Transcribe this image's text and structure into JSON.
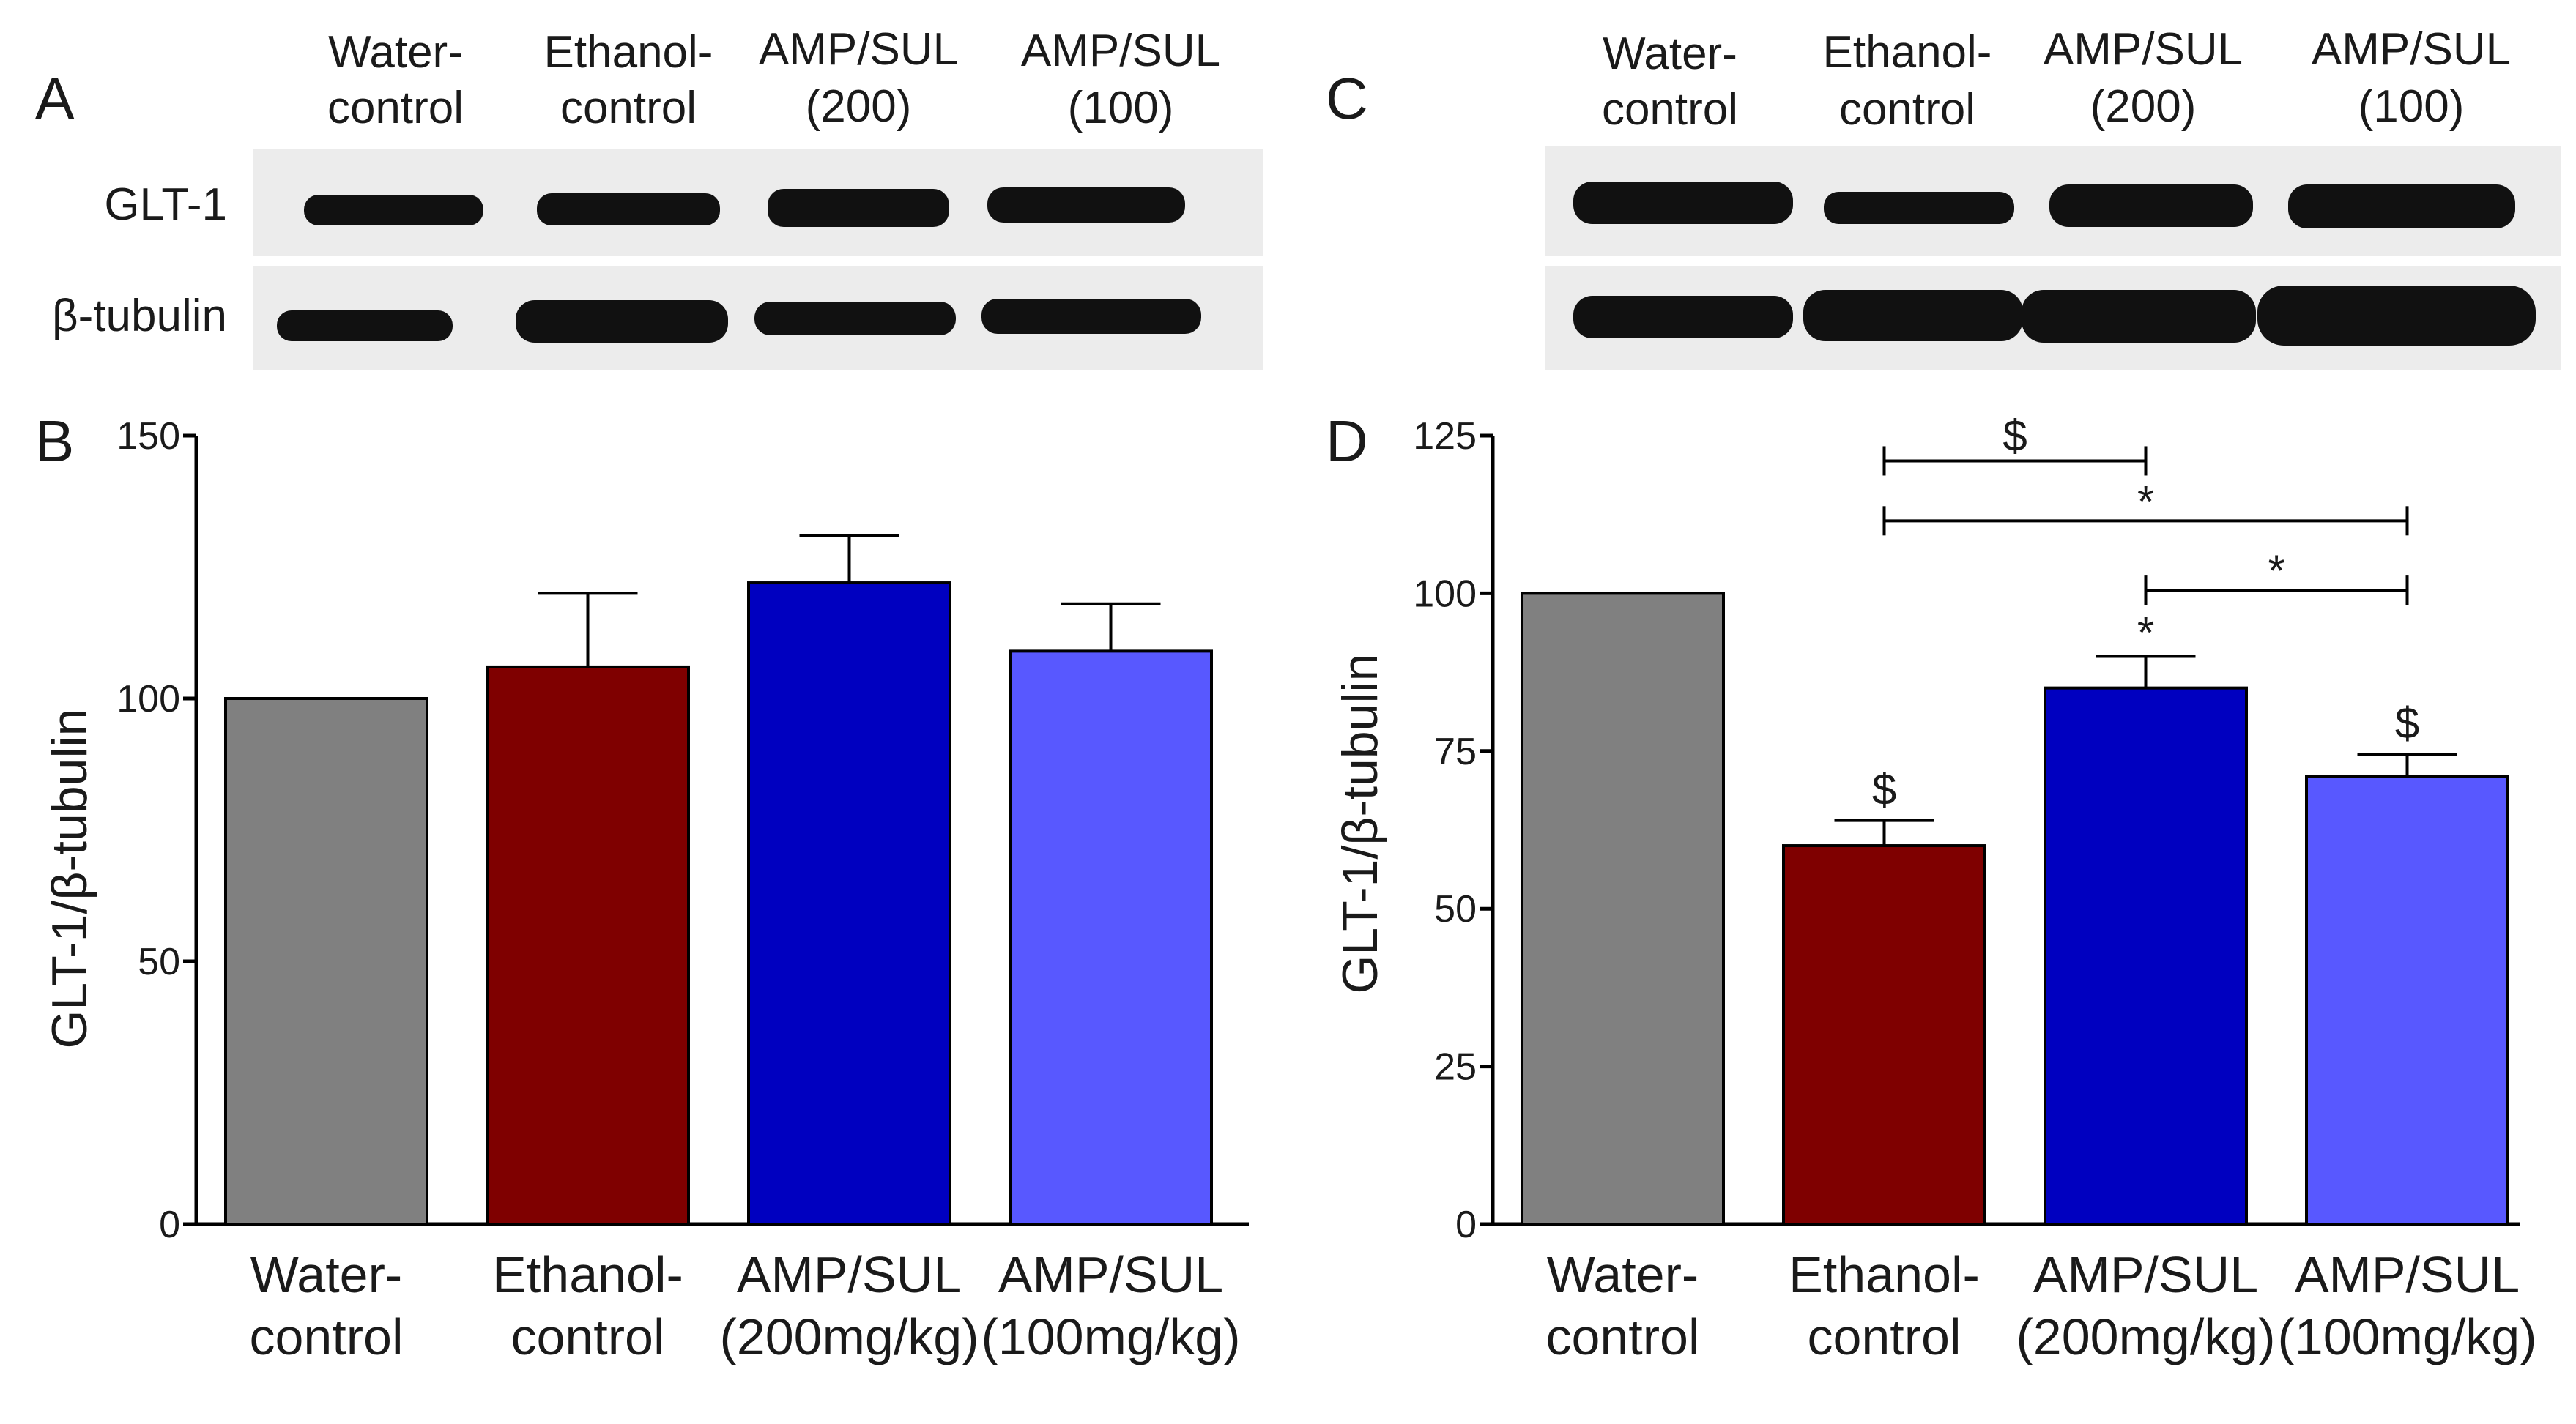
{
  "figure": {
    "panel_labels": {
      "A": "A",
      "B": "B",
      "C": "C",
      "D": "D"
    }
  },
  "blot_A": {
    "lanes": [
      {
        "line1": "Water-",
        "line2": "control"
      },
      {
        "line1": "Ethanol-",
        "line2": "control"
      },
      {
        "line1": "AMP/SUL",
        "line2": "(200)"
      },
      {
        "line1": "AMP/SUL",
        "line2": "(100)"
      }
    ],
    "row_labels": [
      "GLT-1",
      "β-tubulin"
    ]
  },
  "blot_C": {
    "lanes": [
      {
        "line1": "Water-",
        "line2": "control"
      },
      {
        "line1": "Ethanol-",
        "line2": "control"
      },
      {
        "line1": "AMP/SUL",
        "line2": "(200)"
      },
      {
        "line1": "AMP/SUL",
        "line2": "(100)"
      }
    ]
  },
  "colors": {
    "water": "#808080",
    "ethanol": "#7f0000",
    "amp200": "#0000c0",
    "amp100": "#5858ff",
    "blot_bg": "#ececec",
    "band": "#111111"
  },
  "chart_data": [
    {
      "panel": "B",
      "type": "bar",
      "categories": [
        {
          "line1": "Water-",
          "line2": "control"
        },
        {
          "line1": "Ethanol-",
          "line2": "control"
        },
        {
          "line1": "AMP/SUL",
          "line2": "(200mg/kg)"
        },
        {
          "line1": "AMP/SUL",
          "line2": "(100mg/kg)"
        }
      ],
      "values": [
        100,
        106,
        122,
        109
      ],
      "errors": [
        0,
        14,
        9,
        9
      ],
      "ylabel": "GLT-1/β-tubulin",
      "ylim": [
        0,
        150
      ],
      "yticks": [
        0,
        50,
        100,
        150
      ],
      "significance": []
    },
    {
      "panel": "D",
      "type": "bar",
      "categories": [
        {
          "line1": "Water-",
          "line2": "control"
        },
        {
          "line1": "Ethanol-",
          "line2": "control"
        },
        {
          "line1": "AMP/SUL",
          "line2": "(200mg/kg)"
        },
        {
          "line1": "AMP/SUL",
          "line2": "(100mg/kg)"
        }
      ],
      "values": [
        100,
        60,
        85,
        71
      ],
      "errors": [
        0,
        4,
        5,
        3.5
      ],
      "ylabel": "GLT-1/β-tubulin",
      "ylim": [
        0,
        125
      ],
      "yticks": [
        0,
        25,
        50,
        75,
        100,
        125
      ],
      "bar_marks": [
        "",
        "$",
        "*",
        "$"
      ],
      "brackets": [
        {
          "from": 1,
          "to": 2,
          "level": 121,
          "label": "$"
        },
        {
          "from": 1,
          "to": 3,
          "level": 111.5,
          "label": "*"
        },
        {
          "from": 2,
          "to": 3,
          "level": 100.5,
          "label": "*"
        }
      ]
    }
  ]
}
